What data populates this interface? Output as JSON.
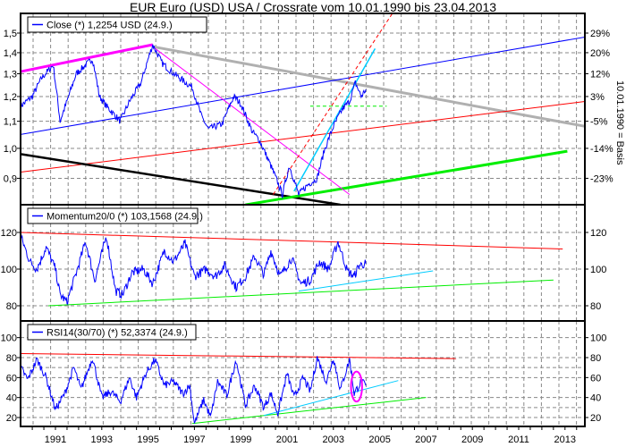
{
  "chart_data": [
    {
      "type": "line",
      "title": "EUR Euro (USD) USA / Crossrate vom 10.01.1990 bis 23.04.2013",
      "legend": "Close (*) 1,2254 USD (24.9.)",
      "legend_position": "top-left",
      "right_axis_label": "10.01.1990 = Basis",
      "scale": "log",
      "ylim": [
        0.82,
        1.62
      ],
      "yticks": [
        "1,5",
        "1,4",
        "1,3",
        "1,2",
        "1,1",
        "1,0",
        "0,9"
      ],
      "ytick_values": [
        1.5,
        1.4,
        1.3,
        1.2,
        1.1,
        1.0,
        0.9
      ],
      "right_ticks": [
        "29%",
        "20%",
        "12%",
        "3%",
        "-5%",
        "-14%",
        "-23%"
      ],
      "right_tick_values": [
        1.5,
        1.4,
        1.3,
        1.2,
        1.1,
        1.0,
        0.9
      ],
      "series_color": "#0000ff",
      "points": [
        [
          1989.5,
          1.16
        ],
        [
          1990.0,
          1.2
        ],
        [
          1990.4,
          1.28
        ],
        [
          1990.9,
          1.34
        ],
        [
          1991.2,
          1.1
        ],
        [
          1991.5,
          1.18
        ],
        [
          1991.9,
          1.3
        ],
        [
          1992.6,
          1.37
        ],
        [
          1992.9,
          1.2
        ],
        [
          1993.2,
          1.16
        ],
        [
          1993.8,
          1.1
        ],
        [
          1994.2,
          1.18
        ],
        [
          1994.7,
          1.26
        ],
        [
          1995.2,
          1.44
        ],
        [
          1995.6,
          1.35
        ],
        [
          1996.0,
          1.31
        ],
        [
          1996.5,
          1.27
        ],
        [
          1996.9,
          1.24
        ],
        [
          1997.3,
          1.12
        ],
        [
          1997.6,
          1.07
        ],
        [
          1998.2,
          1.09
        ],
        [
          1998.7,
          1.2
        ],
        [
          1999.0,
          1.17
        ],
        [
          1999.5,
          1.06
        ],
        [
          1999.8,
          1.03
        ],
        [
          2000.3,
          0.94
        ],
        [
          2000.8,
          0.85
        ],
        [
          2001.1,
          0.94
        ],
        [
          2001.5,
          0.85
        ],
        [
          2001.9,
          0.88
        ],
        [
          2002.3,
          0.9
        ],
        [
          2002.6,
          0.99
        ],
        [
          2003.0,
          1.08
        ],
        [
          2003.4,
          1.15
        ],
        [
          2003.7,
          1.18
        ],
        [
          2003.95,
          1.26
        ],
        [
          2004.2,
          1.2
        ],
        [
          2004.4,
          1.23
        ]
      ],
      "trendlines": [
        {
          "color": "#ff00ff",
          "width": 3,
          "dash": false,
          "from": [
            1989.5,
            1.31
          ],
          "to": [
            1995.2,
            1.44
          ]
        },
        {
          "color": "#b0b0b0",
          "width": 3,
          "dash": false,
          "from": [
            1995.2,
            1.43
          ],
          "to": [
            2013.9,
            1.08
          ]
        },
        {
          "color": "#0000ff",
          "width": 1,
          "dash": false,
          "from": [
            1989.5,
            1.05
          ],
          "to": [
            2013.9,
            1.48
          ]
        },
        {
          "color": "#ff0000",
          "width": 1,
          "dash": false,
          "from": [
            1989.5,
            0.92
          ],
          "to": [
            2013.9,
            1.18
          ]
        },
        {
          "color": "#000000",
          "width": 2.5,
          "dash": false,
          "from": [
            1989.5,
            0.98
          ],
          "to": [
            2003.3,
            0.82
          ]
        },
        {
          "color": "#00ee00",
          "width": 3,
          "dash": false,
          "from": [
            1999.2,
            0.82
          ],
          "to": [
            2013.1,
            0.99
          ]
        },
        {
          "color": "#ff00ff",
          "width": 1,
          "dash": false,
          "from": [
            1995.2,
            1.43
          ],
          "to": [
            2003.7,
            0.85
          ]
        },
        {
          "color": "#ff0000",
          "width": 1,
          "dash": true,
          "from": [
            2000.4,
            0.85
          ],
          "to": [
            2006.0,
            1.7
          ]
        },
        {
          "color": "#00ccff",
          "width": 1.5,
          "dash": false,
          "from": [
            2001.3,
            0.86
          ],
          "to": [
            2004.8,
            1.42
          ]
        },
        {
          "color": "#00ee00",
          "width": 1,
          "dash": true,
          "from": [
            2002.0,
            1.16
          ],
          "to": [
            2005.3,
            1.16
          ]
        }
      ]
    },
    {
      "type": "line",
      "legend": "Momentum20/0 (*) 103,1568 (24.9.)",
      "yticks": [
        "120",
        "100",
        "80"
      ],
      "ytick_values": [
        120,
        100,
        80
      ],
      "ylim": [
        72,
        135
      ],
      "series_color": "#0000ff",
      "points": [
        [
          1989.5,
          118
        ],
        [
          1989.9,
          104
        ],
        [
          1990.2,
          100
        ],
        [
          1990.6,
          112
        ],
        [
          1991.0,
          100
        ],
        [
          1991.2,
          86
        ],
        [
          1991.5,
          82
        ],
        [
          1991.9,
          98
        ],
        [
          1992.3,
          115
        ],
        [
          1992.7,
          94
        ],
        [
          1993.2,
          118
        ],
        [
          1993.6,
          88
        ],
        [
          1993.9,
          86
        ],
        [
          1994.3,
          98
        ],
        [
          1994.8,
          100
        ],
        [
          1995.2,
          92
        ],
        [
          1995.7,
          110
        ],
        [
          1996.1,
          104
        ],
        [
          1996.6,
          114
        ],
        [
          1997.0,
          96
        ],
        [
          1997.5,
          100
        ],
        [
          1997.9,
          96
        ],
        [
          1998.3,
          102
        ],
        [
          1998.8,
          90
        ],
        [
          1999.2,
          96
        ],
        [
          1999.6,
          107
        ],
        [
          2000.0,
          97
        ],
        [
          2000.3,
          110
        ],
        [
          2000.7,
          96
        ],
        [
          2001.2,
          106
        ],
        [
          2001.6,
          92
        ],
        [
          2002.0,
          94
        ],
        [
          2002.4,
          104
        ],
        [
          2002.8,
          100
        ],
        [
          2003.2,
          115
        ],
        [
          2003.6,
          99
        ],
        [
          2003.9,
          96
        ],
        [
          2004.1,
          102
        ],
        [
          2004.4,
          103
        ]
      ],
      "trendlines": [
        {
          "color": "#ff0000",
          "width": 1,
          "dash": false,
          "from": [
            1989.5,
            120
          ],
          "to": [
            2012.9,
            111
          ]
        },
        {
          "color": "#00ee00",
          "width": 1,
          "dash": false,
          "from": [
            1990.7,
            80
          ],
          "to": [
            2012.5,
            94
          ]
        },
        {
          "color": "#00ccff",
          "width": 1,
          "dash": false,
          "from": [
            2001.5,
            88
          ],
          "to": [
            2007.3,
            99
          ]
        }
      ]
    },
    {
      "type": "line",
      "legend": "RSI14(30/70) (*) 52,3374 (24.9.)",
      "yticks": [
        "100",
        "80",
        "60",
        "40",
        "20"
      ],
      "ytick_values": [
        100,
        80,
        60,
        40,
        20
      ],
      "hlines": [
        70,
        30
      ],
      "ylim": [
        10,
        107
      ],
      "series_color": "#0000ff",
      "points": [
        [
          1989.5,
          70
        ],
        [
          1989.8,
          58
        ],
        [
          1990.2,
          78
        ],
        [
          1990.6,
          60
        ],
        [
          1991.0,
          28
        ],
        [
          1991.4,
          44
        ],
        [
          1991.8,
          70
        ],
        [
          1992.1,
          48
        ],
        [
          1992.6,
          80
        ],
        [
          1993.0,
          40
        ],
        [
          1993.4,
          46
        ],
        [
          1993.8,
          36
        ],
        [
          1994.2,
          60
        ],
        [
          1994.5,
          40
        ],
        [
          1994.9,
          64
        ],
        [
          1995.3,
          78
        ],
        [
          1995.7,
          52
        ],
        [
          1996.1,
          56
        ],
        [
          1996.5,
          44
        ],
        [
          1996.8,
          52
        ],
        [
          1997.0,
          14
        ],
        [
          1997.4,
          38
        ],
        [
          1997.7,
          20
        ],
        [
          1998.0,
          56
        ],
        [
          1998.4,
          42
        ],
        [
          1998.8,
          78
        ],
        [
          1999.2,
          32
        ],
        [
          1999.6,
          52
        ],
        [
          2000.0,
          30
        ],
        [
          2000.3,
          44
        ],
        [
          2000.6,
          24
        ],
        [
          2001.0,
          64
        ],
        [
          2001.3,
          40
        ],
        [
          2001.7,
          60
        ],
        [
          2002.0,
          46
        ],
        [
          2002.3,
          80
        ],
        [
          2002.7,
          56
        ],
        [
          2003.0,
          80
        ],
        [
          2003.3,
          48
        ],
        [
          2003.7,
          78
        ],
        [
          2003.9,
          44
        ],
        [
          2004.2,
          56
        ],
        [
          2004.4,
          52
        ]
      ],
      "trendlines": [
        {
          "color": "#ff0000",
          "width": 1,
          "dash": false,
          "from": [
            1989.5,
            84
          ],
          "to": [
            2008.3,
            79
          ]
        },
        {
          "color": "#00ee00",
          "width": 1,
          "dash": false,
          "from": [
            1996.9,
            14
          ],
          "to": [
            2007.0,
            40
          ]
        },
        {
          "color": "#00ccff",
          "width": 1,
          "dash": false,
          "from": [
            2000.0,
            22
          ],
          "to": [
            2005.8,
            57
          ]
        }
      ],
      "annotation": {
        "type": "ellipse",
        "color": "#ff00ff",
        "center": [
          2004.0,
          51
        ],
        "span_years": 0.4,
        "span_value": 30
      }
    }
  ],
  "x_axis": {
    "labels": [
      "1991",
      "1993",
      "1995",
      "1997",
      "1999",
      "2001",
      "2003",
      "2005",
      "2007",
      "2009",
      "2011",
      "2013"
    ],
    "values": [
      1991,
      1993,
      1995,
      1997,
      1999,
      2001,
      2003,
      2005,
      2007,
      2009,
      2011,
      2013
    ]
  }
}
